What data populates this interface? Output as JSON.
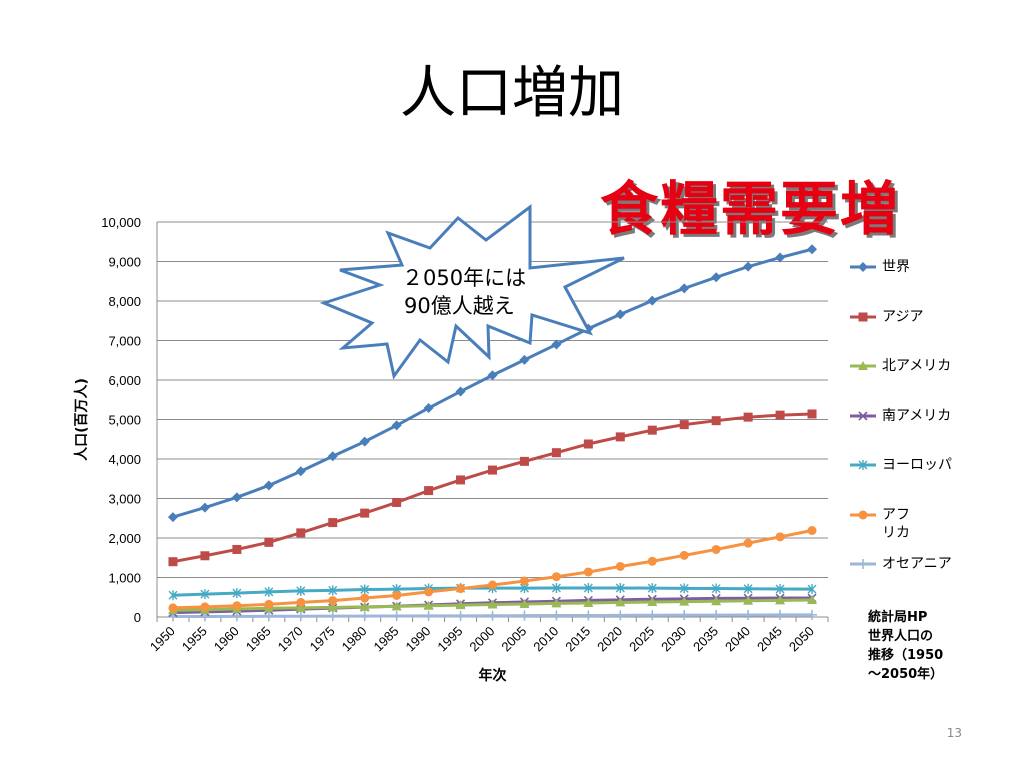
{
  "slide": {
    "title": "人口増加",
    "stamp": "食糧需要増",
    "callout": [
      "２050年には",
      "90億人越え"
    ],
    "source": [
      "統計局HP",
      "世界人口の",
      "推移（1950",
      "～2050年）"
    ],
    "page_number": "13"
  },
  "chart_data": {
    "type": "line",
    "title": "",
    "xlabel": "年次",
    "ylabel": "人口(百万人)",
    "ylim": [
      0,
      10000
    ],
    "ytick_values": [
      0,
      1000,
      2000,
      3000,
      4000,
      5000,
      6000,
      7000,
      8000,
      9000,
      10000
    ],
    "ytick_labels": [
      "0",
      "1,000",
      "2,000",
      "3,000",
      "4,000",
      "5,000",
      "6,000",
      "7,000",
      "8,000",
      "9,000",
      "10,000"
    ],
    "x": [
      "1950",
      "1955",
      "1960",
      "1965",
      "1970",
      "1975",
      "1980",
      "1985",
      "1990",
      "1995",
      "2000",
      "2005",
      "2010",
      "2015",
      "2020",
      "2025",
      "2030",
      "2035",
      "2040",
      "2045",
      "2050"
    ],
    "grid": "horizontal",
    "legend_position": "right",
    "series": [
      {
        "name": "世界",
        "color": "#4a7ebb",
        "marker": "diamond",
        "values": [
          2530,
          2770,
          3030,
          3330,
          3690,
          4070,
          4440,
          4850,
          5290,
          5710,
          6120,
          6510,
          6900,
          7300,
          7660,
          8010,
          8320,
          8600,
          8870,
          9100,
          9310
        ]
      },
      {
        "name": "アジア",
        "color": "#be4b48",
        "marker": "square",
        "values": [
          1400,
          1550,
          1710,
          1890,
          2130,
          2390,
          2630,
          2900,
          3200,
          3470,
          3720,
          3940,
          4160,
          4380,
          4560,
          4730,
          4870,
          4970,
          5060,
          5110,
          5140
        ]
      },
      {
        "name": "北アメリカ",
        "color": "#98b954",
        "marker": "triangle",
        "values": [
          170,
          185,
          205,
          220,
          230,
          245,
          255,
          270,
          285,
          300,
          315,
          330,
          345,
          355,
          370,
          380,
          390,
          400,
          410,
          420,
          430
        ]
      },
      {
        "name": "南アメリカ",
        "color": "#7d5fa0",
        "marker": "x",
        "values": [
          110,
          130,
          150,
          170,
          200,
          225,
          250,
          275,
          305,
          335,
          360,
          380,
          400,
          420,
          435,
          450,
          460,
          470,
          475,
          480,
          480
        ]
      },
      {
        "name": "ヨーロッパ",
        "color": "#46aac5",
        "marker": "star",
        "values": [
          550,
          580,
          605,
          635,
          660,
          675,
          695,
          705,
          720,
          730,
          730,
          730,
          735,
          735,
          735,
          730,
          725,
          720,
          715,
          710,
          705
        ]
      },
      {
        "name": "アフ\nリカ",
        "color": "#f69240",
        "marker": "circle",
        "values": [
          230,
          255,
          285,
          320,
          370,
          415,
          480,
          545,
          635,
          720,
          810,
          910,
          1020,
          1140,
          1280,
          1410,
          1560,
          1710,
          1870,
          2030,
          2190
        ]
      },
      {
        "name": "オセアニア",
        "color": "#9eb6d9",
        "marker": "plus",
        "values": [
          13,
          14,
          16,
          18,
          20,
          21,
          23,
          25,
          27,
          29,
          31,
          34,
          37,
          39,
          42,
          44,
          47,
          49,
          51,
          53,
          55
        ]
      }
    ]
  }
}
